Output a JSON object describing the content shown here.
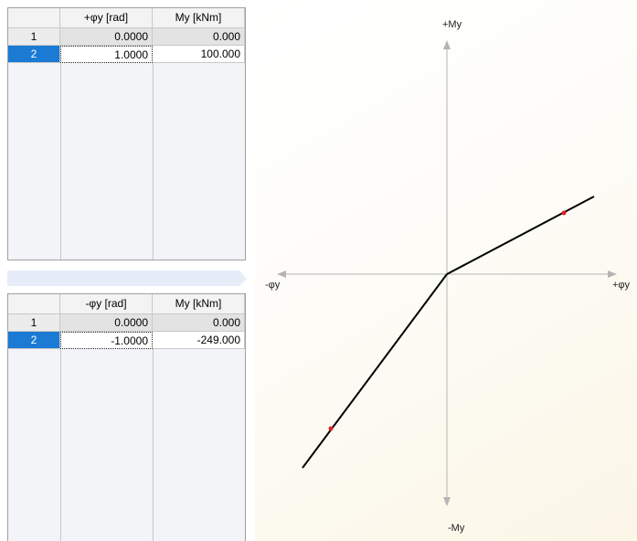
{
  "upper_table": {
    "headers": [
      "",
      "+φy [rad]",
      "My [kNm]"
    ],
    "rows": [
      {
        "num": "1",
        "phi": "0.0000",
        "m": "0.000"
      },
      {
        "num": "2",
        "phi": "1.0000",
        "m": "100.000"
      }
    ]
  },
  "lower_table": {
    "headers": [
      "",
      "-φy [rad]",
      "My [kNm]"
    ],
    "rows": [
      {
        "num": "1",
        "phi": "0.0000",
        "m": "0.000"
      },
      {
        "num": "2",
        "phi": "-1.0000",
        "m": "-249.000"
      }
    ]
  },
  "diagram": {
    "label_pos_m": "+My",
    "label_neg_m": "-My",
    "label_pos_phi": "+φy",
    "label_neg_phi": "-φy",
    "axis_color": "#b4b4b4",
    "curve_color": "#000000",
    "point_color": "#e02020"
  }
}
